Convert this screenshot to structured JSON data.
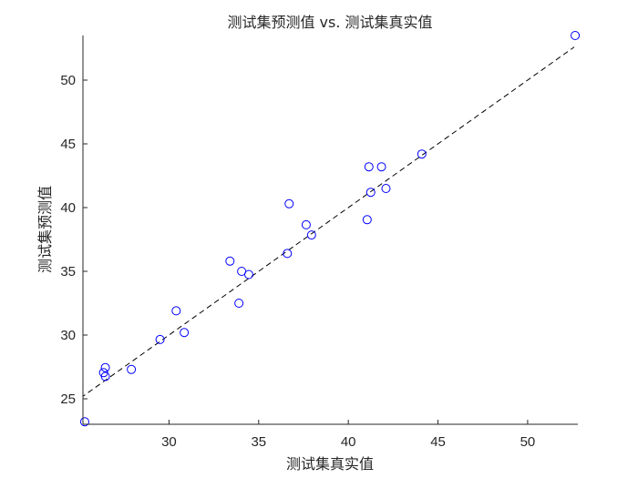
{
  "chart_data": {
    "type": "scatter",
    "title": "测试集预测值 vs. 测试集真实值",
    "xlabel": "测试集真实值",
    "ylabel": "测试集预测值",
    "xlim": [
      25.2,
      52.8
    ],
    "ylim": [
      23.0,
      53.5
    ],
    "xticks": [
      30,
      35,
      40,
      45,
      50
    ],
    "yticks": [
      25,
      30,
      35,
      40,
      45,
      50
    ],
    "grid": false,
    "box": false,
    "marker_color": "#0000ff",
    "reference_line_color": "#000000",
    "series": [
      {
        "marker": "circle",
        "points": [
          {
            "x": 25.3,
            "y": 23.2
          },
          {
            "x": 26.35,
            "y": 27.05
          },
          {
            "x": 26.45,
            "y": 27.45
          },
          {
            "x": 26.45,
            "y": 26.75
          },
          {
            "x": 27.9,
            "y": 27.3
          },
          {
            "x": 29.5,
            "y": 29.65
          },
          {
            "x": 30.4,
            "y": 31.9
          },
          {
            "x": 30.85,
            "y": 30.2
          },
          {
            "x": 33.4,
            "y": 35.8
          },
          {
            "x": 33.9,
            "y": 32.5
          },
          {
            "x": 34.05,
            "y": 35.0
          },
          {
            "x": 34.45,
            "y": 34.75
          },
          {
            "x": 36.6,
            "y": 36.4
          },
          {
            "x": 36.7,
            "y": 40.3
          },
          {
            "x": 37.65,
            "y": 38.65
          },
          {
            "x": 37.95,
            "y": 37.85
          },
          {
            "x": 41.05,
            "y": 39.05
          },
          {
            "x": 41.15,
            "y": 43.2
          },
          {
            "x": 41.25,
            "y": 41.2
          },
          {
            "x": 41.85,
            "y": 43.2
          },
          {
            "x": 42.1,
            "y": 41.5
          },
          {
            "x": 44.1,
            "y": 44.2
          },
          {
            "x": 52.65,
            "y": 53.5
          }
        ]
      }
    ],
    "reference_line": {
      "style": "dashed",
      "x": [
        23.0,
        52.6
      ],
      "y": [
        23.0,
        52.6
      ]
    }
  }
}
